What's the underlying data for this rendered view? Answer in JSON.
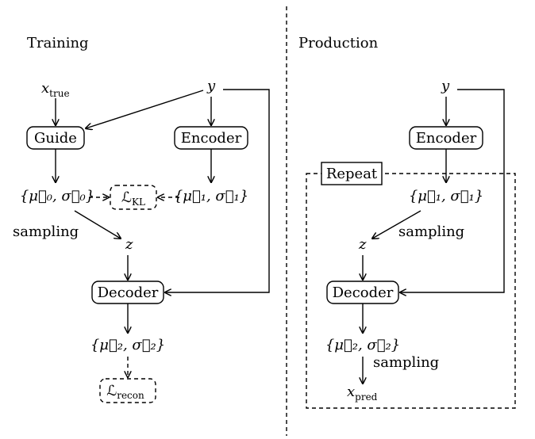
{
  "training": {
    "title": "Training",
    "x_true": {
      "main": "x",
      "sub": "true"
    },
    "y": "y",
    "guide": "Guide",
    "encoder": "Encoder",
    "params0": "{μ⃗₀, σ⃗₀}",
    "loss_kl": {
      "main": "ℒ",
      "sub": "KL"
    },
    "params1": "{μ⃗₁, σ⃗₁}",
    "sampling": "sampling",
    "z": "z",
    "decoder": "Decoder",
    "params2": "{μ⃗₂, σ⃗₂}",
    "loss_recon": {
      "main": "ℒ",
      "sub": "recon"
    }
  },
  "production": {
    "title": "Production",
    "y": "y",
    "encoder": "Encoder",
    "repeat": "Repeat",
    "params1": "{μ⃗₁, σ⃗₁}",
    "sampling_1": "sampling",
    "z": "z",
    "decoder": "Decoder",
    "params2": "{μ⃗₂, σ⃗₂}",
    "sampling_2": "sampling",
    "x_pred": {
      "main": "x",
      "sub": "pred"
    }
  }
}
